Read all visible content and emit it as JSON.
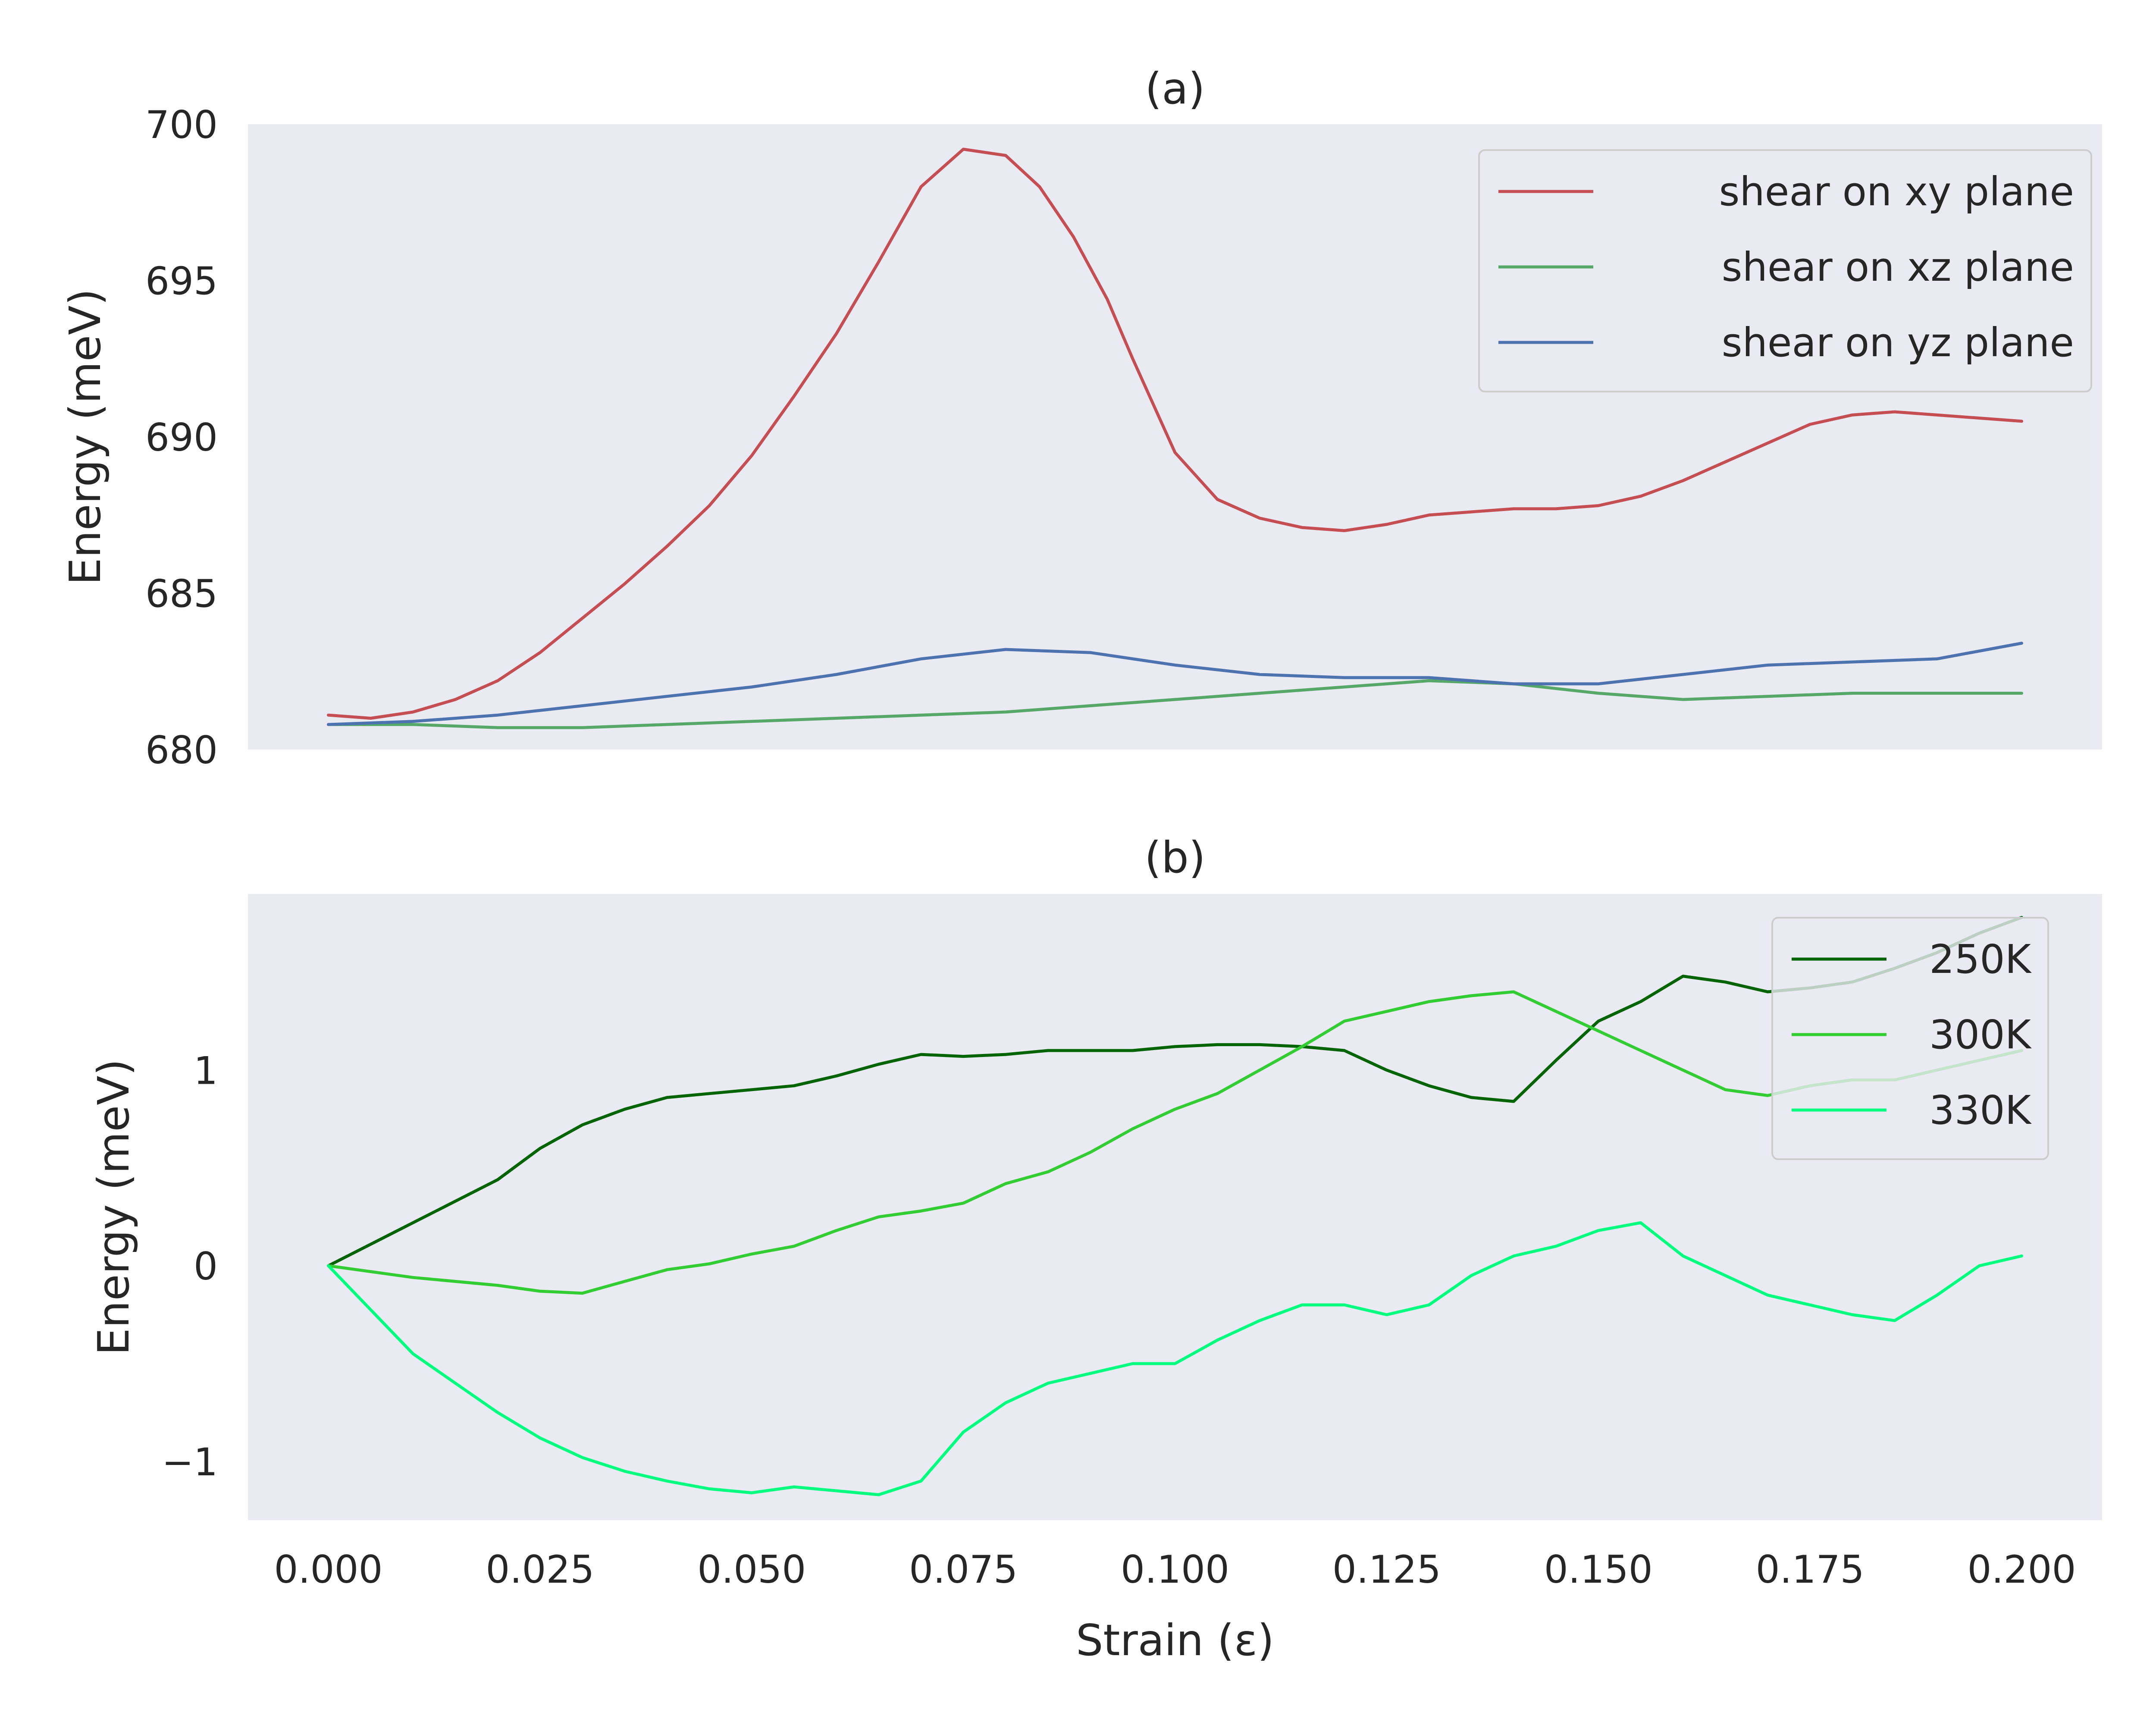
{
  "chart_data": [
    {
      "type": "line",
      "title": "(a)",
      "xlabel": "",
      "ylabel": "Energy (meV)",
      "xlim": [
        -0.0095,
        0.2095
      ],
      "ylim": [
        680,
        700
      ],
      "yticks": [
        680,
        685,
        690,
        695,
        700
      ],
      "grid": false,
      "legend_position": "upper right",
      "series": [
        {
          "name": "shear on xy plane",
          "color": "#c44e52",
          "x": [
            0.0,
            0.005,
            0.01,
            0.015,
            0.02,
            0.025,
            0.03,
            0.035,
            0.04,
            0.045,
            0.05,
            0.055,
            0.06,
            0.065,
            0.07,
            0.075,
            0.08,
            0.084,
            0.088,
            0.092,
            0.095,
            0.1,
            0.105,
            0.11,
            0.115,
            0.12,
            0.125,
            0.13,
            0.135,
            0.14,
            0.145,
            0.15,
            0.155,
            0.16,
            0.165,
            0.17,
            0.175,
            0.18,
            0.185,
            0.19,
            0.195,
            0.2
          ],
          "y": [
            681.1,
            681.0,
            681.2,
            681.6,
            682.2,
            683.1,
            684.2,
            685.3,
            686.5,
            687.8,
            689.4,
            691.3,
            693.3,
            695.6,
            698.0,
            699.2,
            699.0,
            698.0,
            696.4,
            694.4,
            692.5,
            689.5,
            688.0,
            687.4,
            687.1,
            687.0,
            687.2,
            687.5,
            687.6,
            687.7,
            687.7,
            687.8,
            688.1,
            688.6,
            689.2,
            689.8,
            690.4,
            690.7,
            690.8,
            690.7,
            690.6,
            690.5
          ]
        },
        {
          "name": "shear on xz plane",
          "color": "#55a868",
          "x": [
            0.0,
            0.01,
            0.02,
            0.03,
            0.04,
            0.05,
            0.06,
            0.07,
            0.08,
            0.09,
            0.1,
            0.11,
            0.12,
            0.125,
            0.13,
            0.14,
            0.15,
            0.16,
            0.17,
            0.18,
            0.19,
            0.2
          ],
          "y": [
            680.8,
            680.8,
            680.7,
            680.7,
            680.8,
            680.9,
            681.0,
            681.1,
            681.2,
            681.4,
            681.6,
            681.8,
            682.0,
            682.1,
            682.2,
            682.1,
            681.8,
            681.6,
            681.7,
            681.8,
            681.8,
            681.8
          ]
        },
        {
          "name": "shear on yz plane",
          "color": "#4c72b0",
          "x": [
            0.0,
            0.01,
            0.02,
            0.03,
            0.04,
            0.05,
            0.06,
            0.07,
            0.08,
            0.09,
            0.1,
            0.11,
            0.12,
            0.13,
            0.14,
            0.15,
            0.16,
            0.17,
            0.18,
            0.19,
            0.2
          ],
          "y": [
            680.8,
            680.9,
            681.1,
            681.4,
            681.7,
            682.0,
            682.4,
            682.9,
            683.2,
            683.1,
            682.7,
            682.4,
            682.3,
            682.3,
            682.1,
            682.1,
            682.4,
            682.7,
            682.8,
            682.9,
            683.4
          ]
        }
      ]
    },
    {
      "type": "line",
      "title": "(b)",
      "xlabel": "Strain (ε)",
      "ylabel": "Energy (meV)",
      "xlim": [
        -0.0095,
        0.2095
      ],
      "ylim": [
        -1.3,
        1.9
      ],
      "xticks": [
        0.0,
        0.025,
        0.05,
        0.075,
        0.1,
        0.125,
        0.15,
        0.175,
        0.2
      ],
      "xtick_labels": [
        "0.000",
        "0.025",
        "0.050",
        "0.075",
        "0.100",
        "0.125",
        "0.150",
        "0.175",
        "0.200"
      ],
      "yticks": [
        -1,
        0,
        1
      ],
      "ytick_labels": [
        "−1",
        "0",
        "1"
      ],
      "grid": false,
      "legend_position": "upper right",
      "series": [
        {
          "name": "250K",
          "color": "#006400",
          "x": [
            0.0,
            0.01,
            0.02,
            0.025,
            0.03,
            0.035,
            0.04,
            0.045,
            0.05,
            0.055,
            0.06,
            0.065,
            0.07,
            0.075,
            0.08,
            0.085,
            0.09,
            0.095,
            0.1,
            0.105,
            0.11,
            0.115,
            0.12,
            0.125,
            0.13,
            0.135,
            0.14,
            0.145,
            0.15,
            0.155,
            0.16,
            0.165,
            0.17,
            0.175,
            0.18,
            0.185,
            0.19,
            0.195,
            0.2
          ],
          "y": [
            0.0,
            0.22,
            0.44,
            0.6,
            0.72,
            0.8,
            0.86,
            0.88,
            0.9,
            0.92,
            0.97,
            1.03,
            1.08,
            1.07,
            1.08,
            1.1,
            1.1,
            1.1,
            1.12,
            1.13,
            1.13,
            1.12,
            1.1,
            1.0,
            0.92,
            0.86,
            0.84,
            1.05,
            1.25,
            1.35,
            1.48,
            1.45,
            1.4,
            1.42,
            1.45,
            1.52,
            1.6,
            1.7,
            1.78
          ]
        },
        {
          "name": "300K",
          "color": "#32cd32",
          "x": [
            0.0,
            0.01,
            0.02,
            0.025,
            0.03,
            0.035,
            0.04,
            0.045,
            0.05,
            0.055,
            0.06,
            0.065,
            0.07,
            0.075,
            0.08,
            0.085,
            0.09,
            0.095,
            0.1,
            0.105,
            0.11,
            0.115,
            0.12,
            0.125,
            0.13,
            0.135,
            0.14,
            0.145,
            0.15,
            0.155,
            0.16,
            0.165,
            0.17,
            0.175,
            0.18,
            0.185,
            0.19,
            0.195,
            0.2
          ],
          "y": [
            0.0,
            -0.06,
            -0.1,
            -0.13,
            -0.14,
            -0.08,
            -0.02,
            0.01,
            0.06,
            0.1,
            0.18,
            0.25,
            0.28,
            0.32,
            0.42,
            0.48,
            0.58,
            0.7,
            0.8,
            0.88,
            1.0,
            1.12,
            1.25,
            1.3,
            1.35,
            1.38,
            1.4,
            1.3,
            1.2,
            1.1,
            1.0,
            0.9,
            0.87,
            0.92,
            0.95,
            0.95,
            1.0,
            1.05,
            1.1
          ]
        },
        {
          "name": "330K",
          "color": "#00ff7f",
          "x": [
            0.0,
            0.01,
            0.02,
            0.025,
            0.03,
            0.035,
            0.04,
            0.045,
            0.05,
            0.055,
            0.06,
            0.065,
            0.07,
            0.075,
            0.08,
            0.085,
            0.09,
            0.095,
            0.1,
            0.105,
            0.11,
            0.115,
            0.12,
            0.125,
            0.13,
            0.135,
            0.14,
            0.145,
            0.15,
            0.155,
            0.16,
            0.165,
            0.17,
            0.175,
            0.18,
            0.185,
            0.19,
            0.195,
            0.2
          ],
          "y": [
            0.0,
            -0.45,
            -0.75,
            -0.88,
            -0.98,
            -1.05,
            -1.1,
            -1.14,
            -1.16,
            -1.13,
            -1.15,
            -1.17,
            -1.1,
            -0.85,
            -0.7,
            -0.6,
            -0.55,
            -0.5,
            -0.5,
            -0.38,
            -0.28,
            -0.2,
            -0.2,
            -0.25,
            -0.2,
            -0.05,
            0.05,
            0.1,
            0.18,
            0.22,
            0.05,
            -0.05,
            -0.15,
            -0.2,
            -0.25,
            -0.28,
            -0.15,
            0.0,
            0.05
          ]
        }
      ]
    }
  ]
}
